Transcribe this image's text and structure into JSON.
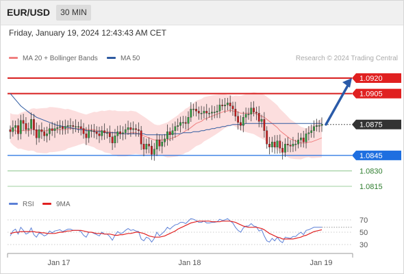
{
  "header": {
    "pair": "EUR/USD",
    "timeframe": "30 MIN",
    "datetime": "Friday, January 19, 2024 12:43:43 AM CET"
  },
  "legend": {
    "ma20": {
      "label": "MA 20 + Bollinger Bands",
      "color": "#f08080"
    },
    "ma50": {
      "label": "MA 50",
      "color": "#2e5aa0"
    }
  },
  "credit": "Research © 2024 Trading Central",
  "rsi_legend": {
    "rsi": {
      "label": "RSI",
      "color": "#5b7fd6"
    },
    "ma9": {
      "label": "9MA",
      "color": "#e02020"
    }
  },
  "chart_data": [
    {
      "type": "candlestick",
      "title": "",
      "ylim": [
        1.0815,
        1.092
      ],
      "x_tick_labels": [
        "Jan 17",
        "Jan 18",
        "Jan 19"
      ],
      "current_price": "1.0875",
      "levels": [
        {
          "value": "1.0920",
          "role": "resistance",
          "style": "filled",
          "color": "#e02020"
        },
        {
          "value": "1.0905",
          "role": "resistance",
          "style": "filled",
          "color": "#e02020"
        },
        {
          "value": "1.0875",
          "role": "current",
          "style": "filled",
          "color": "#333333"
        },
        {
          "value": "1.0845",
          "role": "pivot",
          "style": "filled",
          "color": "#1e6fe0"
        },
        {
          "value": "1.0830",
          "role": "support",
          "style": "text",
          "color": "#2e7d2e"
        },
        {
          "value": "1.0815",
          "role": "support",
          "style": "text",
          "color": "#2e7d2e"
        }
      ],
      "closes": [
        1.0868,
        1.0872,
        1.0874,
        1.0866,
        1.0879,
        1.0876,
        1.087,
        1.0871,
        1.088,
        1.087,
        1.0862,
        1.087,
        1.0868,
        1.0864,
        1.0866,
        1.0871,
        1.0869,
        1.0871,
        1.0872,
        1.0873,
        1.0871,
        1.0873,
        1.0874,
        1.0874,
        1.0873,
        1.0873,
        1.0873,
        1.0871,
        1.0866,
        1.0862,
        1.0869,
        1.0869,
        1.0868,
        1.0866,
        1.0864,
        1.0869,
        1.0867,
        1.0867,
        1.0863,
        1.0857,
        1.0864,
        1.0868,
        1.0866,
        1.0867,
        1.087,
        1.0872,
        1.087,
        1.0871,
        1.087,
        1.0869,
        1.0856,
        1.0851,
        1.0856,
        1.0854,
        1.0846,
        1.0851,
        1.086,
        1.0854,
        1.0858,
        1.0861,
        1.0868,
        1.0865,
        1.0869,
        1.0873,
        1.0874,
        1.0877,
        1.0877,
        1.0876,
        1.0882,
        1.089,
        1.089,
        1.0888,
        1.0886,
        1.0886,
        1.0888,
        1.0886,
        1.0886,
        1.0887,
        1.0887,
        1.0888,
        1.0894,
        1.0893,
        1.0894,
        1.0896,
        1.0893,
        1.089,
        1.0883,
        1.0877,
        1.0874,
        1.0882,
        1.0885,
        1.0885,
        1.0891,
        1.0887,
        1.0886,
        1.0878,
        1.088,
        1.0869,
        1.0856,
        1.0853,
        1.0858,
        1.0853,
        1.0859,
        1.0852,
        1.0848,
        1.0856,
        1.0855,
        1.0854,
        1.0856,
        1.0856,
        1.086,
        1.0862,
        1.0858,
        1.0866,
        1.0867,
        1.0869,
        1.0873,
        1.0874,
        1.0874,
        1.0875
      ],
      "opens": [
        1.087,
        1.0868,
        1.0872,
        1.0874,
        1.0866,
        1.0879,
        1.0876,
        1.087,
        1.0871,
        1.088,
        1.087,
        1.0862,
        1.087,
        1.0868,
        1.0864,
        1.0866,
        1.0871,
        1.0869,
        1.0871,
        1.0872,
        1.0873,
        1.0871,
        1.0873,
        1.0874,
        1.0874,
        1.0873,
        1.0873,
        1.0873,
        1.0871,
        1.0866,
        1.0862,
        1.0869,
        1.0869,
        1.0868,
        1.0866,
        1.0864,
        1.0869,
        1.0867,
        1.0867,
        1.0863,
        1.0857,
        1.0864,
        1.0868,
        1.0866,
        1.0867,
        1.087,
        1.0872,
        1.087,
        1.0871,
        1.087,
        1.0869,
        1.0856,
        1.0851,
        1.0856,
        1.0854,
        1.0846,
        1.0851,
        1.086,
        1.0854,
        1.0858,
        1.0861,
        1.0868,
        1.0865,
        1.0869,
        1.0873,
        1.0874,
        1.0877,
        1.0877,
        1.0876,
        1.0882,
        1.089,
        1.089,
        1.0888,
        1.0886,
        1.0886,
        1.0888,
        1.0886,
        1.0886,
        1.0887,
        1.0887,
        1.0888,
        1.0894,
        1.0893,
        1.0894,
        1.0896,
        1.0893,
        1.089,
        1.0883,
        1.0877,
        1.0874,
        1.0882,
        1.0885,
        1.0885,
        1.0891,
        1.0887,
        1.0886,
        1.0878,
        1.088,
        1.0869,
        1.0856,
        1.0853,
        1.0858,
        1.0853,
        1.0859,
        1.0852,
        1.0848,
        1.0856,
        1.0855,
        1.0854,
        1.0856,
        1.0856,
        1.086,
        1.0862,
        1.0858,
        1.0866,
        1.0867,
        1.0869,
        1.0873,
        1.0874,
        1.0874
      ],
      "ma20": [
        1.0872,
        1.087,
        1.0869,
        1.0868,
        1.0869,
        1.0869,
        1.0869,
        1.0869,
        1.087,
        1.087,
        1.0869,
        1.0869,
        1.0869,
        1.0869,
        1.0869,
        1.087,
        1.087,
        1.087,
        1.087,
        1.087,
        1.087,
        1.087,
        1.0871,
        1.0871,
        1.0871,
        1.0871,
        1.0871,
        1.0871,
        1.0871,
        1.087,
        1.087,
        1.087,
        1.087,
        1.0869,
        1.0869,
        1.0869,
        1.0868,
        1.0868,
        1.0868,
        1.0867,
        1.0867,
        1.0866,
        1.0866,
        1.0866,
        1.0866,
        1.0866,
        1.0867,
        1.0867,
        1.0867,
        1.0866,
        1.0865,
        1.0864,
        1.0863,
        1.0862,
        1.0861,
        1.086,
        1.086,
        1.086,
        1.086,
        1.086,
        1.086,
        1.0861,
        1.0862,
        1.0863,
        1.0864,
        1.0866,
        1.0867,
        1.0869,
        1.087,
        1.0872,
        1.0874,
        1.0876,
        1.0877,
        1.0878,
        1.088,
        1.0881,
        1.0882,
        1.0883,
        1.0884,
        1.0885,
        1.0886,
        1.0887,
        1.0888,
        1.0888,
        1.0889,
        1.0888,
        1.0888,
        1.0887,
        1.0886,
        1.0886,
        1.0886,
        1.0886,
        1.0886,
        1.0886,
        1.0885,
        1.0884,
        1.0883,
        1.0882,
        1.088,
        1.0878,
        1.0876,
        1.0874,
        1.0872,
        1.0869,
        1.0867,
        1.0865,
        1.0863,
        1.0861,
        1.086,
        1.0859,
        1.0858,
        1.0857,
        1.0857,
        1.0857,
        1.0858,
        1.0858,
        1.0859,
        1.086,
        1.0861,
        1.0862
      ],
      "ma50": [
        1.0905,
        1.0902,
        1.0899,
        1.0896,
        1.0893,
        1.0891,
        1.0889,
        1.0887,
        1.0885,
        1.0884,
        1.0882,
        1.0881,
        1.088,
        1.0879,
        1.0878,
        1.0877,
        1.0876,
        1.0875,
        1.0874,
        1.0874,
        1.0873,
        1.0873,
        1.0872,
        1.0872,
        1.0871,
        1.0871,
        1.087,
        1.087,
        1.087,
        1.0869,
        1.0869,
        1.0869,
        1.0868,
        1.0868,
        1.0868,
        1.0868,
        1.0867,
        1.0867,
        1.0867,
        1.0867,
        1.0867,
        1.0867,
        1.0866,
        1.0866,
        1.0866,
        1.0866,
        1.0866,
        1.0866,
        1.0866,
        1.0866,
        1.0866,
        1.0866,
        1.0865,
        1.0865,
        1.0865,
        1.0865,
        1.0865,
        1.0865,
        1.0865,
        1.0865,
        1.0865,
        1.0866,
        1.0866,
        1.0866,
        1.0866,
        1.0866,
        1.0867,
        1.0867,
        1.0867,
        1.0867,
        1.0868,
        1.0868,
        1.0868,
        1.0869,
        1.0869,
        1.087,
        1.087,
        1.0871,
        1.0871,
        1.0872,
        1.0872,
        1.0873,
        1.0873,
        1.0874,
        1.0874,
        1.0875,
        1.0875,
        1.0875,
        1.0875,
        1.0875,
        1.0876,
        1.0876,
        1.0876,
        1.0876,
        1.0876,
        1.0876,
        1.0876,
        1.0876,
        1.0876,
        1.0876,
        1.0876,
        1.0876,
        1.0876,
        1.0876,
        1.0876,
        1.0876,
        1.0876,
        1.0876,
        1.0876,
        1.0876,
        1.0876,
        1.0876,
        1.0876,
        1.0876,
        1.0876,
        1.0876,
        1.0876,
        1.0876,
        1.0876,
        1.0876
      ]
    },
    {
      "type": "line",
      "title": "",
      "ylim": [
        30,
        70
      ],
      "y_ticks": [
        "70",
        "50",
        "30"
      ],
      "series": [
        {
          "name": "RSI",
          "color": "#5b7fd6",
          "values": [
            44,
            52,
            55,
            47,
            58,
            53,
            47,
            49,
            57,
            46,
            42,
            49,
            47,
            44,
            46,
            52,
            49,
            52,
            53,
            54,
            51,
            53,
            55,
            55,
            53,
            53,
            53,
            51,
            45,
            42,
            50,
            50,
            48,
            46,
            44,
            50,
            47,
            47,
            43,
            37,
            45,
            51,
            48,
            49,
            53,
            56,
            53,
            54,
            52,
            51,
            39,
            36,
            42,
            40,
            34,
            40,
            50,
            44,
            48,
            52,
            58,
            55,
            59,
            62,
            63,
            66,
            66,
            64,
            68,
            72,
            71,
            69,
            66,
            66,
            68,
            65,
            65,
            66,
            66,
            67,
            71,
            69,
            70,
            72,
            68,
            65,
            58,
            53,
            50,
            57,
            60,
            60,
            64,
            60,
            59,
            52,
            54,
            44,
            36,
            34,
            40,
            36,
            42,
            36,
            33,
            42,
            41,
            40,
            43,
            43,
            47,
            50,
            46,
            53,
            54,
            56,
            58,
            58,
            58,
            58
          ]
        },
        {
          "name": "9MA",
          "color": "#e02020",
          "values": [
            48,
            49,
            50,
            50,
            51,
            51,
            51,
            51,
            51,
            51,
            50,
            50,
            49,
            49,
            48,
            48,
            48,
            48,
            49,
            50,
            50,
            51,
            52,
            52,
            53,
            53,
            53,
            53,
            52,
            51,
            50,
            50,
            49,
            48,
            48,
            48,
            47,
            47,
            47,
            46,
            45,
            45,
            46,
            46,
            47,
            48,
            48,
            49,
            50,
            50,
            49,
            48,
            46,
            44,
            43,
            42,
            42,
            42,
            43,
            44,
            46,
            48,
            50,
            52,
            55,
            57,
            59,
            61,
            63,
            65,
            66,
            67,
            68,
            68,
            68,
            68,
            68,
            67,
            67,
            67,
            67,
            68,
            68,
            68,
            68,
            67,
            66,
            64,
            62,
            60,
            59,
            58,
            58,
            58,
            58,
            57,
            56,
            54,
            51,
            48,
            46,
            44,
            42,
            41,
            39,
            39,
            39,
            39,
            39,
            40,
            41,
            42,
            44,
            45,
            47,
            49,
            51,
            52,
            53,
            54
          ]
        }
      ]
    }
  ]
}
